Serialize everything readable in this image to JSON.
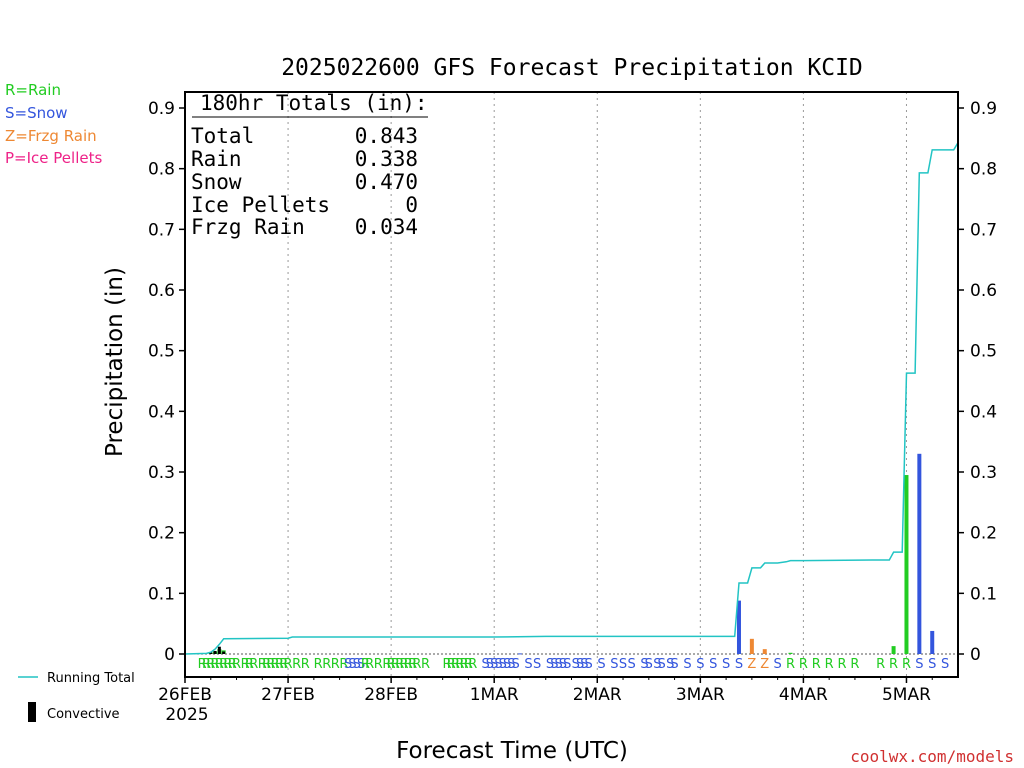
{
  "chart_data": {
    "type": "bar",
    "title": "2025022600 GFS Forecast Precipitation KCID",
    "xlabel": "Forecast Time (UTC)",
    "ylabel": "Precipitation (in)",
    "ylim": [
      0,
      0.93
    ],
    "y_ticks": [
      0,
      0.1,
      0.2,
      0.3,
      0.4,
      0.5,
      0.6,
      0.7,
      0.8,
      0.9
    ],
    "y_tick_labels": [
      "0",
      "0.1",
      "0.2",
      "0.3",
      "0.4",
      "0.5",
      "0.6",
      "0.7",
      "0.8",
      "0.9"
    ],
    "x_unit": "forecast hour",
    "xlim": [
      0,
      180
    ],
    "x_ticks": [
      0,
      24,
      48,
      72,
      96,
      120,
      144,
      168
    ],
    "x_tick_labels": [
      "26FEB",
      "27FEB",
      "28FEB",
      "1MAR",
      "2MAR",
      "3MAR",
      "4MAR",
      "5MAR"
    ],
    "x_sub_label": "2025",
    "grid": "vertical dotted at day boundaries",
    "legend": {
      "items": [
        {
          "text": "R=Rain",
          "color": "#22cc22"
        },
        {
          "text": "S=Snow",
          "color": "#3355dd"
        },
        {
          "text": "Z=Frzg Rain",
          "color": "#ee8833"
        },
        {
          "text": "P=Ice Pellets",
          "color": "#ee2288"
        }
      ],
      "running_total_label": "Running Total",
      "convective_label": "Convective",
      "placement": "left"
    },
    "totals_box": {
      "header": "180hr Totals (in):",
      "rows": [
        {
          "label": "Total",
          "value": "0.843"
        },
        {
          "label": "Rain",
          "value": "0.338"
        },
        {
          "label": "Snow",
          "value": "0.470"
        },
        {
          "label": "Ice Pellets",
          "value": "0"
        },
        {
          "label": "Frzg Rain",
          "value": "0.034"
        }
      ]
    },
    "bars": [
      {
        "hour": 6,
        "value": 0.002,
        "ptype": "R"
      },
      {
        "hour": 7,
        "value": 0.004,
        "ptype": "R"
      },
      {
        "hour": 8,
        "value": 0.008,
        "ptype": "R"
      },
      {
        "hour": 9,
        "value": 0.006,
        "ptype": "R"
      },
      {
        "hour": 78,
        "value": 0.001,
        "ptype": "S"
      },
      {
        "hour": 129,
        "value": 0.088,
        "ptype": "S"
      },
      {
        "hour": 132,
        "value": 0.025,
        "ptype": "Z"
      },
      {
        "hour": 135,
        "value": 0.008,
        "ptype": "Z"
      },
      {
        "hour": 141,
        "value": 0.002,
        "ptype": "R"
      },
      {
        "hour": 165,
        "value": 0.013,
        "ptype": "R"
      },
      {
        "hour": 168,
        "value": 0.295,
        "ptype": "R"
      },
      {
        "hour": 171,
        "value": 0.33,
        "ptype": "S"
      },
      {
        "hour": 174,
        "value": 0.038,
        "ptype": "S"
      }
    ],
    "convective_bars": [
      {
        "hour": 6,
        "value": 0.003
      },
      {
        "hour": 7,
        "value": 0.005
      },
      {
        "hour": 8,
        "value": 0.012
      },
      {
        "hour": 9,
        "value": 0.004
      }
    ],
    "running_total": [
      [
        0,
        0
      ],
      [
        5,
        0.001
      ],
      [
        6,
        0.003
      ],
      [
        7,
        0.008
      ],
      [
        8,
        0.016
      ],
      [
        9,
        0.025
      ],
      [
        24,
        0.026
      ],
      [
        25,
        0.028
      ],
      [
        48,
        0.028
      ],
      [
        72,
        0.028
      ],
      [
        84,
        0.029
      ],
      [
        126,
        0.029
      ],
      [
        128,
        0.029
      ],
      [
        129,
        0.117
      ],
      [
        131,
        0.117
      ],
      [
        132,
        0.142
      ],
      [
        134,
        0.142
      ],
      [
        135,
        0.15
      ],
      [
        138,
        0.15
      ],
      [
        140,
        0.152
      ],
      [
        141,
        0.154
      ],
      [
        144,
        0.154
      ],
      [
        160,
        0.155
      ],
      [
        164,
        0.155
      ],
      [
        165,
        0.168
      ],
      [
        167,
        0.168
      ],
      [
        168,
        0.463
      ],
      [
        170,
        0.463
      ],
      [
        171,
        0.793
      ],
      [
        173,
        0.793
      ],
      [
        174,
        0.831
      ],
      [
        179,
        0.831
      ],
      [
        180,
        0.843
      ]
    ],
    "ptype_markers": [
      {
        "hour": 4,
        "t": "R"
      },
      {
        "hour": 5,
        "t": "R"
      },
      {
        "hour": 6,
        "t": "R"
      },
      {
        "hour": 7,
        "t": "R"
      },
      {
        "hour": 8,
        "t": "R"
      },
      {
        "hour": 9,
        "t": "R"
      },
      {
        "hour": 10,
        "t": "R"
      },
      {
        "hour": 11,
        "t": "R"
      },
      {
        "hour": 12,
        "t": "R"
      },
      {
        "hour": 14,
        "t": "R"
      },
      {
        "hour": 15,
        "t": "R"
      },
      {
        "hour": 16,
        "t": "R"
      },
      {
        "hour": 18,
        "t": "R"
      },
      {
        "hour": 19,
        "t": "R"
      },
      {
        "hour": 20,
        "t": "R"
      },
      {
        "hour": 21,
        "t": "R"
      },
      {
        "hour": 22,
        "t": "R"
      },
      {
        "hour": 23,
        "t": "R"
      },
      {
        "hour": 24,
        "t": "R"
      },
      {
        "hour": 26,
        "t": "R"
      },
      {
        "hour": 28,
        "t": "R"
      },
      {
        "hour": 31,
        "t": "R"
      },
      {
        "hour": 33,
        "t": "R"
      },
      {
        "hour": 35,
        "t": "R"
      },
      {
        "hour": 37,
        "t": "R"
      },
      {
        "hour": 38,
        "t": "S"
      },
      {
        "hour": 39,
        "t": "S"
      },
      {
        "hour": 40,
        "t": "S"
      },
      {
        "hour": 41,
        "t": "S"
      },
      {
        "hour": 42,
        "t": "R"
      },
      {
        "hour": 43,
        "t": "R"
      },
      {
        "hour": 45,
        "t": "R"
      },
      {
        "hour": 47,
        "t": "R"
      },
      {
        "hour": 48,
        "t": "R"
      },
      {
        "hour": 49,
        "t": "R"
      },
      {
        "hour": 50,
        "t": "R"
      },
      {
        "hour": 51,
        "t": "R"
      },
      {
        "hour": 52,
        "t": "R"
      },
      {
        "hour": 53,
        "t": "R"
      },
      {
        "hour": 54,
        "t": "R"
      },
      {
        "hour": 56,
        "t": "R"
      },
      {
        "hour": 61,
        "t": "R"
      },
      {
        "hour": 62,
        "t": "R"
      },
      {
        "hour": 63,
        "t": "R"
      },
      {
        "hour": 64,
        "t": "R"
      },
      {
        "hour": 65,
        "t": "R"
      },
      {
        "hour": 66,
        "t": "R"
      },
      {
        "hour": 67,
        "t": "R"
      },
      {
        "hour": 70,
        "t": "S"
      },
      {
        "hour": 71,
        "t": "S"
      },
      {
        "hour": 72,
        "t": "S"
      },
      {
        "hour": 73,
        "t": "S"
      },
      {
        "hour": 74,
        "t": "S"
      },
      {
        "hour": 75,
        "t": "S"
      },
      {
        "hour": 76,
        "t": "S"
      },
      {
        "hour": 77,
        "t": "S"
      },
      {
        "hour": 80,
        "t": "S"
      },
      {
        "hour": 82,
        "t": "S"
      },
      {
        "hour": 85,
        "t": "S"
      },
      {
        "hour": 86,
        "t": "S"
      },
      {
        "hour": 87,
        "t": "S"
      },
      {
        "hour": 88,
        "t": "S"
      },
      {
        "hour": 89,
        "t": "S"
      },
      {
        "hour": 91,
        "t": "S"
      },
      {
        "hour": 92,
        "t": "S"
      },
      {
        "hour": 93,
        "t": "S"
      },
      {
        "hour": 94,
        "t": "S"
      },
      {
        "hour": 97,
        "t": "S"
      },
      {
        "hour": 100,
        "t": "S"
      },
      {
        "hour": 102,
        "t": "S"
      },
      {
        "hour": 104,
        "t": "S"
      },
      {
        "hour": 107,
        "t": "S"
      },
      {
        "hour": 108,
        "t": "S"
      },
      {
        "hour": 110,
        "t": "S"
      },
      {
        "hour": 111,
        "t": "S"
      },
      {
        "hour": 113,
        "t": "S"
      },
      {
        "hour": 114,
        "t": "S"
      },
      {
        "hour": 117,
        "t": "S"
      },
      {
        "hour": 120,
        "t": "S"
      },
      {
        "hour": 123,
        "t": "S"
      },
      {
        "hour": 126,
        "t": "S"
      },
      {
        "hour": 129,
        "t": "S"
      },
      {
        "hour": 132,
        "t": "Z"
      },
      {
        "hour": 135,
        "t": "Z"
      },
      {
        "hour": 138,
        "t": "S"
      },
      {
        "hour": 141,
        "t": "R"
      },
      {
        "hour": 144,
        "t": "R"
      },
      {
        "hour": 147,
        "t": "R"
      },
      {
        "hour": 150,
        "t": "R"
      },
      {
        "hour": 153,
        "t": "R"
      },
      {
        "hour": 156,
        "t": "R"
      },
      {
        "hour": 162,
        "t": "R"
      },
      {
        "hour": 165,
        "t": "R"
      },
      {
        "hour": 168,
        "t": "R"
      },
      {
        "hour": 171,
        "t": "S"
      },
      {
        "hour": 174,
        "t": "S"
      },
      {
        "hour": 177,
        "t": "S"
      }
    ],
    "colors": {
      "R": "#22cc22",
      "S": "#3355dd",
      "Z": "#ee8833",
      "P": "#ee2288",
      "running_total": "#22c4c4",
      "convective": "#000000"
    }
  },
  "credit": "coolwx.com/models"
}
